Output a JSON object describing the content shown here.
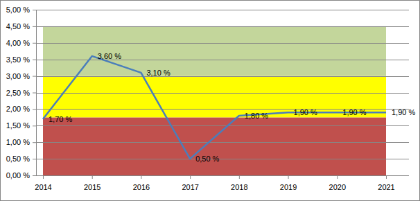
{
  "chart_data": {
    "type": "line",
    "categories": [
      "2014",
      "2015",
      "2016",
      "2017",
      "2018",
      "2019",
      "2020",
      "2021"
    ],
    "values": [
      1.7,
      3.6,
      3.1,
      0.5,
      1.8,
      1.9,
      1.9,
      1.9
    ],
    "value_labels": [
      "1,70 %",
      "3,60 %",
      "3,10 %",
      "0,50 %",
      "1,80 %",
      "1,90 %",
      "1,90 %",
      "1,90 %"
    ],
    "color": "#4a7ebb",
    "data_labels": true,
    "grid": true,
    "ylim": [
      0,
      5
    ],
    "yticks": [
      {
        "value": 0,
        "label": "0,00 %"
      },
      {
        "value": 0.5,
        "label": "0,50 %"
      },
      {
        "value": 1,
        "label": "1,00 %"
      },
      {
        "value": 1.5,
        "label": "1,50 %"
      },
      {
        "value": 2,
        "label": "2,00 %"
      },
      {
        "value": 2.5,
        "label": "2,50 %"
      },
      {
        "value": 3,
        "label": "3,00 %"
      },
      {
        "value": 3.5,
        "label": "3,50 %"
      },
      {
        "value": 4,
        "label": "4,00 %"
      },
      {
        "value": 4.5,
        "label": "4,50 %"
      },
      {
        "value": 5,
        "label": "5,00 %"
      }
    ],
    "bands": [
      {
        "from": 0,
        "to": 1.75,
        "color": "#c0504d"
      },
      {
        "from": 1.75,
        "to": 3,
        "color": "#ffff00"
      },
      {
        "from": 3,
        "to": 4.5,
        "color": "#c3d69b"
      }
    ]
  }
}
